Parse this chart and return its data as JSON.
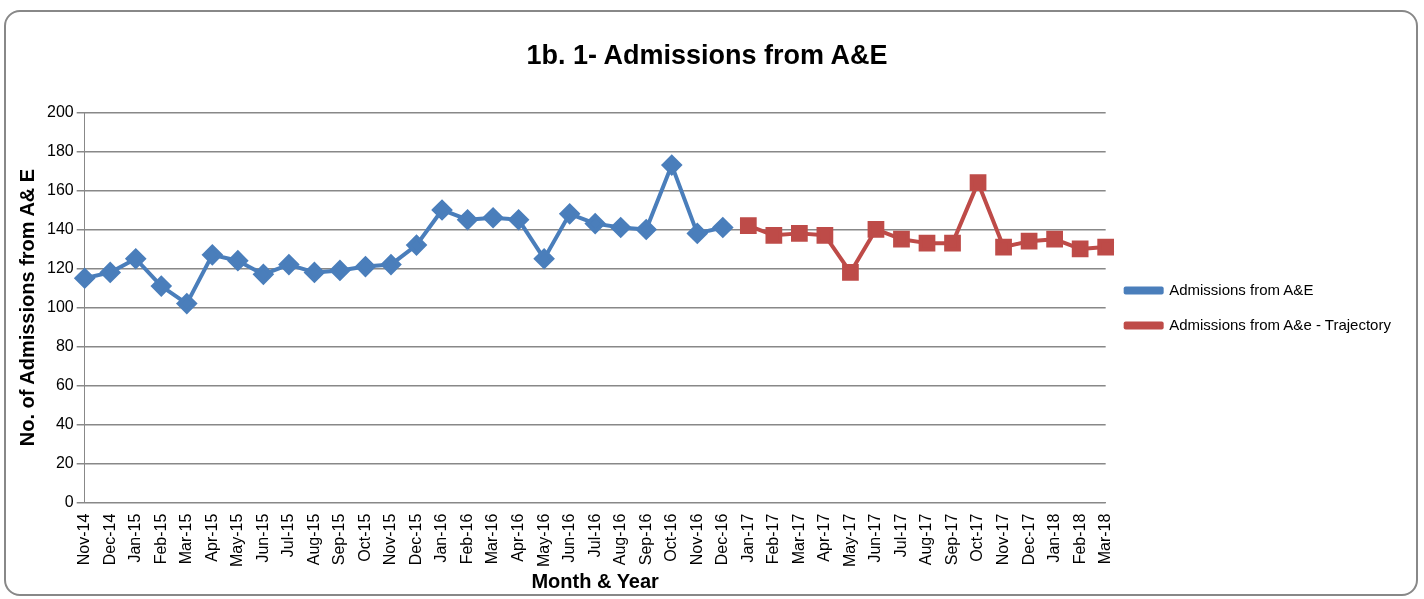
{
  "chart_data": {
    "type": "line",
    "title": "1b. 1- Admissions from A&E",
    "xlabel": "Month & Year",
    "ylabel": "No. of Admissions from A& E",
    "categories": [
      "Nov-14",
      "Dec-14",
      "Jan-15",
      "Feb-15",
      "Mar-15",
      "Apr-15",
      "May-15",
      "Jun-15",
      "Jul-15",
      "Aug-15",
      "Sep-15",
      "Oct-15",
      "Nov-15",
      "Dec-15",
      "Jan-16",
      "Feb-16",
      "Mar-16",
      "Apr-16",
      "May-16",
      "Jun-16",
      "Jul-16",
      "Aug-16",
      "Sep-16",
      "Oct-16",
      "Nov-16",
      "Dec-16",
      "Jan-17",
      "Feb-17",
      "Mar-17",
      "Apr-17",
      "May-17",
      "Jun-17",
      "Jul-17",
      "Aug-17",
      "Sep-17",
      "Oct-17",
      "Nov-17",
      "Dec-17",
      "Jan-18",
      "Feb-18",
      "Mar-18"
    ],
    "series": [
      {
        "name": "Admissions from A&E",
        "color": "#4a7ebb",
        "marker": "diamond",
        "values": [
          115,
          118,
          125,
          111,
          102,
          127,
          124,
          117,
          122,
          118,
          119,
          121,
          122,
          132,
          150,
          145,
          146,
          145,
          125,
          148,
          143,
          141,
          140,
          173,
          138,
          141,
          null,
          null,
          null,
          null,
          null,
          null,
          null,
          null,
          null,
          null,
          null,
          null,
          null,
          null,
          null
        ]
      },
      {
        "name": "Admissions from A&e - Trajectory",
        "color": "#be4b48",
        "marker": "square",
        "values": [
          null,
          null,
          null,
          null,
          null,
          null,
          null,
          null,
          null,
          null,
          null,
          null,
          null,
          null,
          null,
          null,
          null,
          null,
          null,
          null,
          null,
          null,
          null,
          null,
          null,
          null,
          142,
          137,
          138,
          137,
          118,
          140,
          135,
          133,
          133,
          164,
          131,
          134,
          135,
          130,
          131
        ]
      }
    ],
    "ylim": [
      0,
      200
    ],
    "yticks": [
      0,
      20,
      40,
      60,
      80,
      100,
      120,
      140,
      160,
      180,
      200
    ],
    "grid": "y",
    "legend": "right",
    "line_style": "solid"
  }
}
